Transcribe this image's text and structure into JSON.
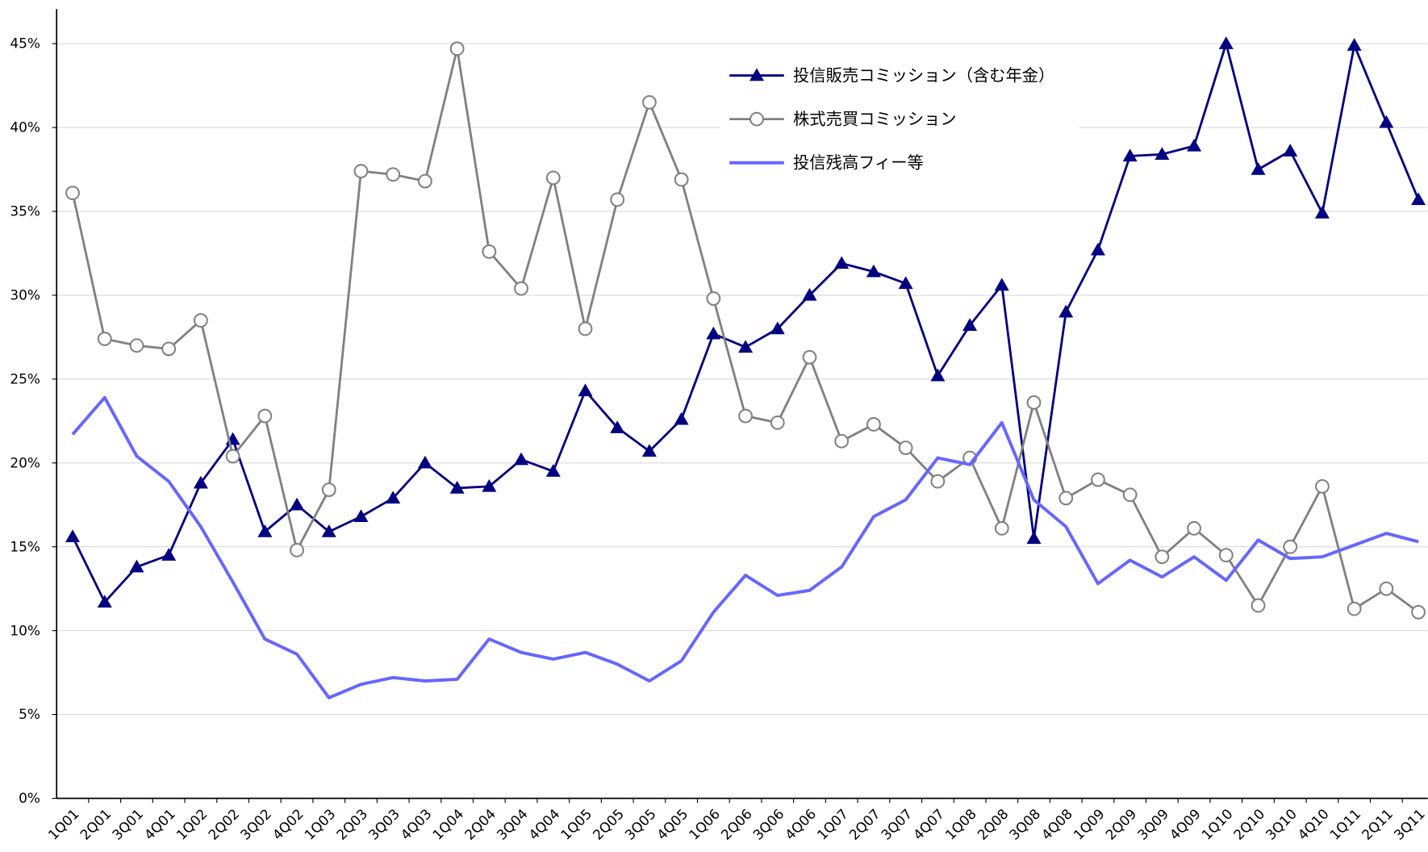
{
  "chart_data": {
    "type": "line",
    "categories": [
      "1Q01",
      "2Q01",
      "3Q01",
      "4Q01",
      "1Q02",
      "2Q02",
      "3Q02",
      "4Q02",
      "1Q03",
      "2Q03",
      "3Q03",
      "4Q03",
      "1Q04",
      "2Q04",
      "3Q04",
      "4Q04",
      "1Q05",
      "2Q05",
      "3Q05",
      "4Q05",
      "1Q06",
      "2Q06",
      "3Q06",
      "4Q06",
      "1Q07",
      "2Q07",
      "3Q07",
      "4Q07",
      "1Q08",
      "2Q08",
      "3Q08",
      "4Q08",
      "1Q09",
      "2Q09",
      "3Q09",
      "4Q09",
      "1Q10",
      "2Q10",
      "3Q10",
      "4Q10",
      "1Q11",
      "2Q11",
      "3Q11"
    ],
    "series": [
      {
        "name": "投信販売コミッション（含む年金）",
        "color": "#000080",
        "marker": "triangle",
        "values": [
          15.6,
          11.7,
          13.8,
          14.5,
          18.8,
          21.4,
          15.9,
          17.5,
          15.9,
          16.8,
          17.9,
          20.0,
          18.5,
          18.6,
          20.2,
          19.5,
          24.3,
          22.1,
          20.7,
          22.6,
          27.7,
          26.9,
          28.0,
          30.0,
          31.9,
          31.4,
          30.7,
          25.2,
          28.2,
          30.6,
          15.5,
          29.0,
          32.7,
          38.3,
          38.4,
          38.9,
          45.0,
          37.5,
          38.6,
          34.9,
          44.9,
          40.3,
          35.7
        ]
      },
      {
        "name": "株式売買コミッション",
        "color": "#808080",
        "marker": "circle",
        "values": [
          36.1,
          27.4,
          27.0,
          26.8,
          28.5,
          20.4,
          22.8,
          14.8,
          18.4,
          37.4,
          37.2,
          36.8,
          44.7,
          32.6,
          30.4,
          37.0,
          28.0,
          35.7,
          41.5,
          36.9,
          29.8,
          22.8,
          22.4,
          26.3,
          21.3,
          22.3,
          20.9,
          18.9,
          20.3,
          16.1,
          23.6,
          17.9,
          19.0,
          18.1,
          14.4,
          16.1,
          14.5,
          11.5,
          15.0,
          18.6,
          11.3,
          12.5,
          11.1
        ]
      },
      {
        "name": "投信残高フィー等",
        "color": "#6666ff",
        "marker": "none",
        "values": [
          21.7,
          23.9,
          20.4,
          18.9,
          16.2,
          12.9,
          9.5,
          8.6,
          6.0,
          6.8,
          7.2,
          7.0,
          7.1,
          9.5,
          8.7,
          8.3,
          8.7,
          8.0,
          7.0,
          8.2,
          11.1,
          13.3,
          12.1,
          12.4,
          13.8,
          16.8,
          17.8,
          20.3,
          19.9,
          22.4,
          17.8,
          16.2,
          12.8,
          14.2,
          13.2,
          14.4,
          13.0,
          15.4,
          14.3,
          14.4,
          15.1,
          15.8,
          15.3
        ]
      }
    ],
    "ylim": [
      0,
      45
    ],
    "yticks": [
      {
        "value": 0,
        "label": "0%"
      },
      {
        "value": 5,
        "label": "5%"
      },
      {
        "value": 10,
        "label": "10%"
      },
      {
        "value": 15,
        "label": "15%"
      },
      {
        "value": 20,
        "label": "20%"
      },
      {
        "value": 25,
        "label": "25%"
      },
      {
        "value": 30,
        "label": "30%"
      },
      {
        "value": 35,
        "label": "35%"
      },
      {
        "value": 40,
        "label": "40%"
      },
      {
        "value": 45,
        "label": "45%"
      }
    ],
    "grid": true
  }
}
